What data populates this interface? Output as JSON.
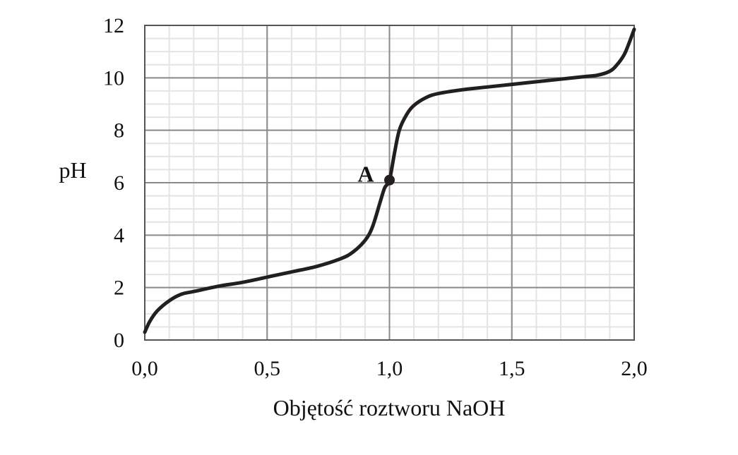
{
  "chart_data": {
    "type": "line",
    "xlabel": "Objętość roztworu NaOH",
    "ylabel": "pH",
    "xlim": [
      0,
      2
    ],
    "ylim": [
      0,
      12
    ],
    "x_ticks": [
      0,
      0.5,
      1.0,
      1.5,
      2.0
    ],
    "x_tick_labels": [
      "0,0",
      "0,5",
      "1,0",
      "1,5",
      "2,0"
    ],
    "y_ticks": [
      0,
      2,
      4,
      6,
      8,
      10,
      12
    ],
    "y_tick_labels": [
      "0",
      "2",
      "4",
      "6",
      "8",
      "10",
      "12"
    ],
    "grid": true,
    "minor_grid": true,
    "series": [
      {
        "x": [
          0.0,
          0.02,
          0.05,
          0.1,
          0.15,
          0.2,
          0.3,
          0.4,
          0.5,
          0.6,
          0.7,
          0.8,
          0.85,
          0.9,
          0.93,
          0.96,
          0.98,
          1.0,
          1.02,
          1.04,
          1.07,
          1.1,
          1.15,
          1.2,
          1.3,
          1.4,
          1.5,
          1.6,
          1.7,
          1.8,
          1.85,
          1.9,
          1.93,
          1.96,
          1.98,
          2.0
        ],
        "y": [
          0.3,
          0.7,
          1.1,
          1.5,
          1.75,
          1.85,
          2.05,
          2.2,
          2.4,
          2.6,
          2.8,
          3.1,
          3.35,
          3.8,
          4.3,
          5.2,
          5.8,
          6.1,
          7.1,
          8.0,
          8.6,
          8.95,
          9.25,
          9.4,
          9.55,
          9.65,
          9.75,
          9.85,
          9.95,
          10.05,
          10.1,
          10.25,
          10.5,
          10.9,
          11.35,
          11.85
        ],
        "color": "#231f20"
      }
    ],
    "annotations": [
      {
        "label": "A",
        "x": 1.0,
        "y": 6.1
      }
    ]
  }
}
